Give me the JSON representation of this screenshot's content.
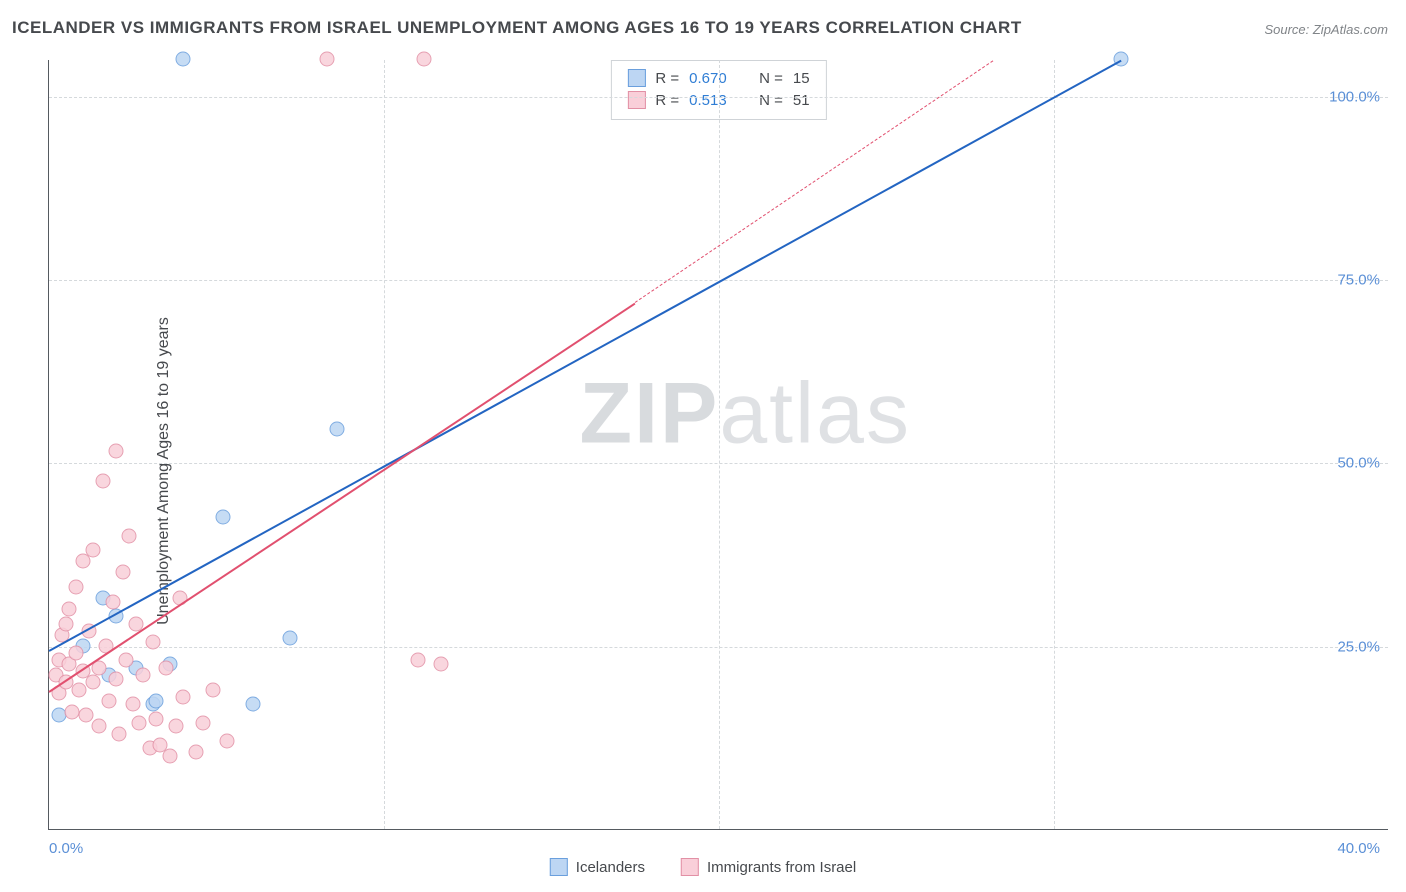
{
  "title": "ICELANDER VS IMMIGRANTS FROM ISRAEL UNEMPLOYMENT AMONG AGES 16 TO 19 YEARS CORRELATION CHART",
  "source": "Source: ZipAtlas.com",
  "y_axis_label": "Unemployment Among Ages 16 to 19 years",
  "watermark_bold": "ZIP",
  "watermark_light": "atlas",
  "chart": {
    "type": "scatter-with-trend",
    "xlim": [
      0,
      40
    ],
    "ylim": [
      0,
      105
    ],
    "x_tick_start": "0.0%",
    "x_tick_end": "40.0%",
    "y_ticks": [
      {
        "v": 25,
        "label": "25.0%"
      },
      {
        "v": 50,
        "label": "50.0%"
      },
      {
        "v": 75,
        "label": "75.0%"
      },
      {
        "v": 100,
        "label": "100.0%"
      }
    ],
    "x_grid_at": [
      10,
      20,
      30
    ],
    "background_color": "#ffffff",
    "grid_color": "#d5d9dc",
    "axis_color": "#555a60",
    "series": [
      {
        "name": "Icelanders",
        "fill": "#bdd6f3",
        "stroke": "#6a9fdd",
        "trend_color": "#2365c2",
        "trend_width": 2.5,
        "trend_dash": "solid",
        "R": "0.670",
        "N": "15",
        "trend_p1": [
          0,
          24.5
        ],
        "trend_p2": [
          32,
          105
        ],
        "points": [
          [
            0.3,
            15.5
          ],
          [
            1.0,
            25.0
          ],
          [
            1.6,
            31.5
          ],
          [
            2.6,
            22.0
          ],
          [
            3.1,
            17.0
          ],
          [
            3.2,
            17.5
          ],
          [
            4.0,
            105.0
          ],
          [
            5.2,
            42.5
          ],
          [
            6.1,
            17.0
          ],
          [
            7.2,
            26.0
          ],
          [
            8.6,
            54.5
          ],
          [
            32.0,
            105.0
          ],
          [
            1.8,
            21.0
          ],
          [
            2.0,
            29.0
          ],
          [
            3.6,
            22.5
          ]
        ]
      },
      {
        "name": "Immigrants from Israel",
        "fill": "#f9cfd9",
        "stroke": "#e290a5",
        "trend_color": "#e1506f",
        "trend_width": 2.5,
        "trend_dash": "solid",
        "R": "0.513",
        "N": "51",
        "trend_p1": [
          0,
          19
        ],
        "trend_p2": [
          17.5,
          72
        ],
        "trend_ext_p2": [
          28.2,
          105
        ],
        "points": [
          [
            0.2,
            21.0
          ],
          [
            0.3,
            23.0
          ],
          [
            0.3,
            18.5
          ],
          [
            0.4,
            26.5
          ],
          [
            0.5,
            20.0
          ],
          [
            0.5,
            28.0
          ],
          [
            0.6,
            22.5
          ],
          [
            0.6,
            30.0
          ],
          [
            0.7,
            16.0
          ],
          [
            0.8,
            24.0
          ],
          [
            0.8,
            33.0
          ],
          [
            0.9,
            19.0
          ],
          [
            1.0,
            21.5
          ],
          [
            1.0,
            36.5
          ],
          [
            1.1,
            15.5
          ],
          [
            1.2,
            27.0
          ],
          [
            1.3,
            20.0
          ],
          [
            1.3,
            38.0
          ],
          [
            1.5,
            22.0
          ],
          [
            1.5,
            14.0
          ],
          [
            1.6,
            47.5
          ],
          [
            1.7,
            25.0
          ],
          [
            1.8,
            17.5
          ],
          [
            1.9,
            31.0
          ],
          [
            2.0,
            20.5
          ],
          [
            2.0,
            51.5
          ],
          [
            2.1,
            13.0
          ],
          [
            2.3,
            23.0
          ],
          [
            2.4,
            40.0
          ],
          [
            2.5,
            17.0
          ],
          [
            2.6,
            28.0
          ],
          [
            2.7,
            14.5
          ],
          [
            2.8,
            21.0
          ],
          [
            3.0,
            11.0
          ],
          [
            3.1,
            25.5
          ],
          [
            3.2,
            15.0
          ],
          [
            3.3,
            11.5
          ],
          [
            3.5,
            22.0
          ],
          [
            3.6,
            10.0
          ],
          [
            3.8,
            14.0
          ],
          [
            4.0,
            18.0
          ],
          [
            4.4,
            10.5
          ],
          [
            4.6,
            14.5
          ],
          [
            4.9,
            19.0
          ],
          [
            5.3,
            12.0
          ],
          [
            8.3,
            105.0
          ],
          [
            11.2,
            105.0
          ],
          [
            11.0,
            23.0
          ],
          [
            11.7,
            22.5
          ],
          [
            3.9,
            31.5
          ],
          [
            2.2,
            35.0
          ]
        ]
      }
    ]
  },
  "legend": {
    "series1_label": "Icelanders",
    "series2_label": "Immigrants from Israel"
  },
  "stats": {
    "r_prefix": "R =",
    "n_prefix": "N ="
  }
}
